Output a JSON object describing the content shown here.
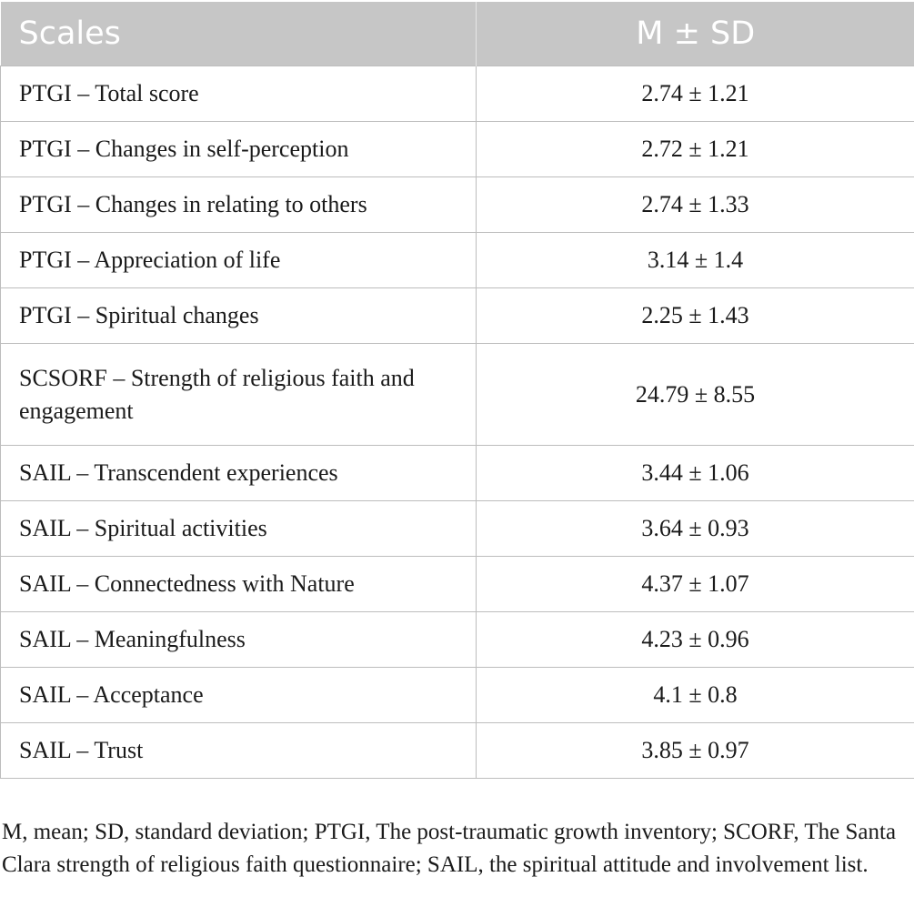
{
  "table": {
    "headers": {
      "scales": "Scales",
      "msd": "M ± SD"
    },
    "rows": [
      {
        "scale": "PTGI – Total score",
        "value": "2.74 ± 1.21"
      },
      {
        "scale": "PTGI – Changes in self-perception",
        "value": "2.72 ± 1.21"
      },
      {
        "scale": "PTGI – Changes in relating to others",
        "value": "2.74 ± 1.33"
      },
      {
        "scale": "PTGI – Appreciation of life",
        "value": "3.14 ± 1.4"
      },
      {
        "scale": "PTGI – Spiritual changes",
        "value": "2.25 ± 1.43"
      },
      {
        "scale": "SCSORF – Strength of religious faith and engagement",
        "value": "24.79 ± 8.55"
      },
      {
        "scale": "SAIL – Transcendent experiences",
        "value": "3.44 ± 1.06"
      },
      {
        "scale": "SAIL – Spiritual activities",
        "value": "3.64 ± 0.93"
      },
      {
        "scale": "SAIL – Connectedness with Nature",
        "value": "4.37 ± 1.07"
      },
      {
        "scale": "SAIL – Meaningfulness",
        "value": "4.23 ± 0.96"
      },
      {
        "scale": "SAIL – Acceptance",
        "value": "4.1 ± 0.8"
      },
      {
        "scale": "SAIL – Trust",
        "value": "3.85 ± 0.97"
      }
    ],
    "footnote": "M, mean; SD, standard deviation; PTGI, The post-traumatic growth inventory; SCORF, The Santa Clara strength of religious faith questionnaire; SAIL, the spiritual attitude and involvement list."
  }
}
